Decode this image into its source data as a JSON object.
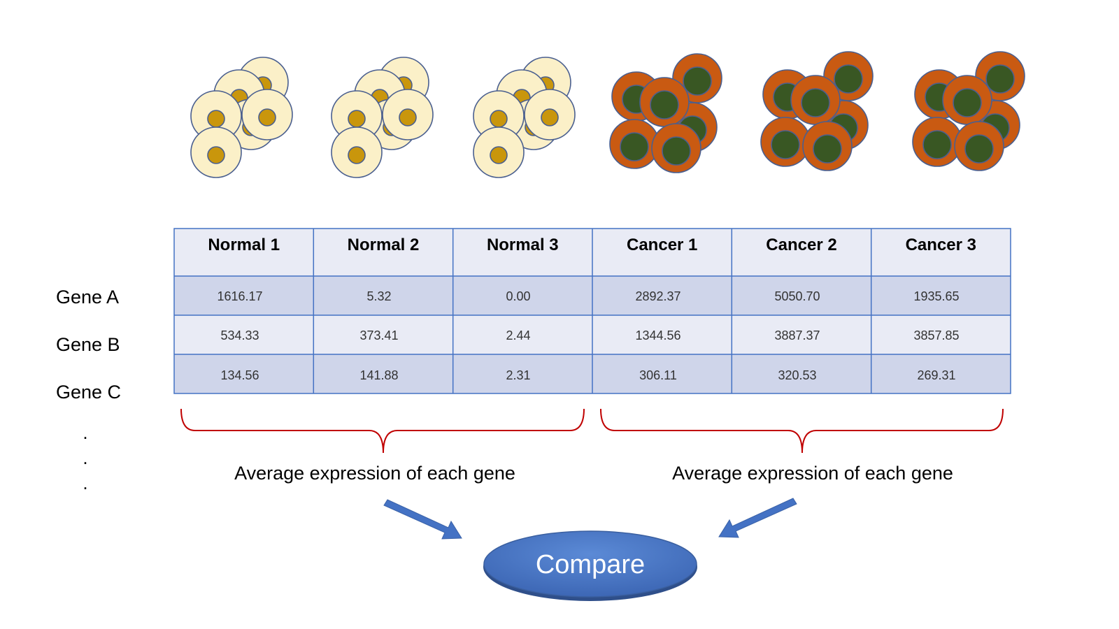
{
  "columns": [
    "Normal 1",
    "Normal 2",
    "Normal 3",
    "Cancer 1",
    "Cancer 2",
    "Cancer 3"
  ],
  "rows": [
    {
      "gene": "Gene A",
      "values": [
        "1616.17",
        "5.32",
        "0.00",
        "2892.37",
        "5050.70",
        "1935.65"
      ]
    },
    {
      "gene": "Gene B",
      "values": [
        "534.33",
        "373.41",
        "2.44",
        "1344.56",
        "3887.37",
        "3857.85"
      ]
    },
    {
      "gene": "Gene C",
      "values": [
        "134.56",
        "141.88",
        "2.31",
        "306.11",
        "320.53",
        "269.31"
      ]
    }
  ],
  "ellipsis": ".",
  "groups": [
    {
      "label": "Average expression of each gene"
    },
    {
      "label": "Average expression of each gene"
    }
  ],
  "compare_label": "Compare",
  "colors": {
    "normal_cell_fill": "#fbf0c8",
    "normal_nucleus_fill": "#c9960c",
    "cancer_cell_fill": "#c95a12",
    "cancer_nucleus_fill": "#395723",
    "cell_outline": "#4a5f8f",
    "table_header_fill": "#e9ebf5",
    "table_row_dark_fill": "#cfd5ea",
    "table_row_light_fill": "#e9ebf5",
    "table_border": "#4472c4",
    "brace_color": "#c00000",
    "arrow_fill": "#4472c4",
    "compare_fill": "#4472c4"
  }
}
